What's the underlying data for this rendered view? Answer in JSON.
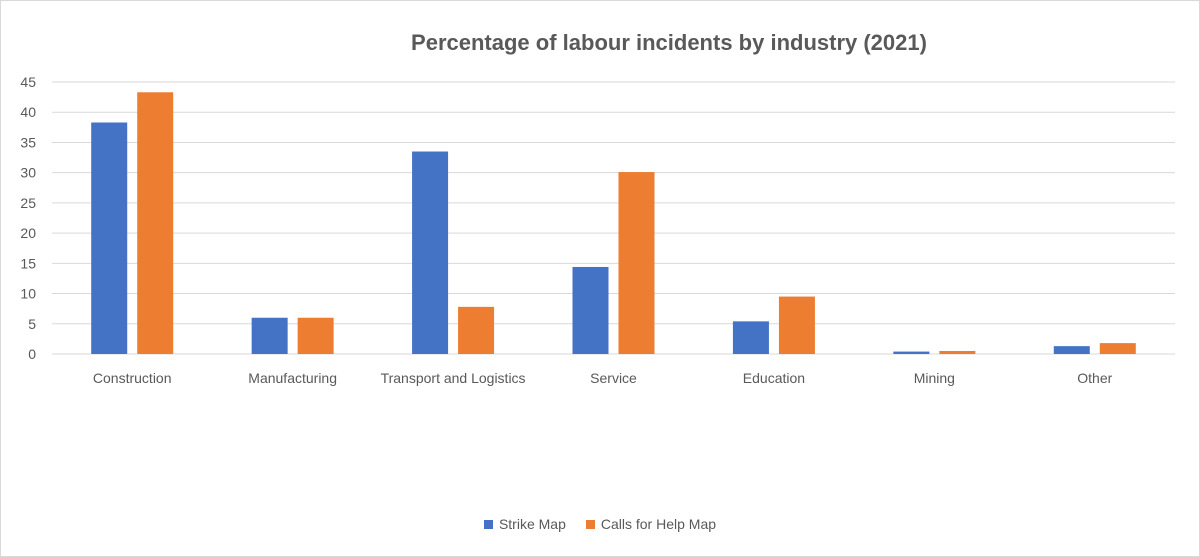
{
  "chart_data": {
    "type": "bar",
    "title": "Percentage of labour incidents by industry (2021)",
    "xlabel": "",
    "ylabel": "",
    "ylim": [
      0,
      45
    ],
    "yticks": [
      0,
      5,
      10,
      15,
      20,
      25,
      30,
      35,
      40,
      45
    ],
    "categories": [
      "Construction",
      "Manufacturing",
      "Transport and Logistics",
      "Service",
      "Education",
      "Mining",
      "Other"
    ],
    "series": [
      {
        "name": "Strike Map",
        "color": "#4472C4",
        "values": [
          38.3,
          6.0,
          33.5,
          14.4,
          5.4,
          0.4,
          1.3
        ]
      },
      {
        "name": "Calls for Help Map",
        "color": "#ED7D31",
        "values": [
          43.3,
          6.0,
          7.8,
          30.1,
          9.5,
          0.5,
          1.8
        ]
      }
    ],
    "grid": true,
    "legend": "bottom"
  }
}
